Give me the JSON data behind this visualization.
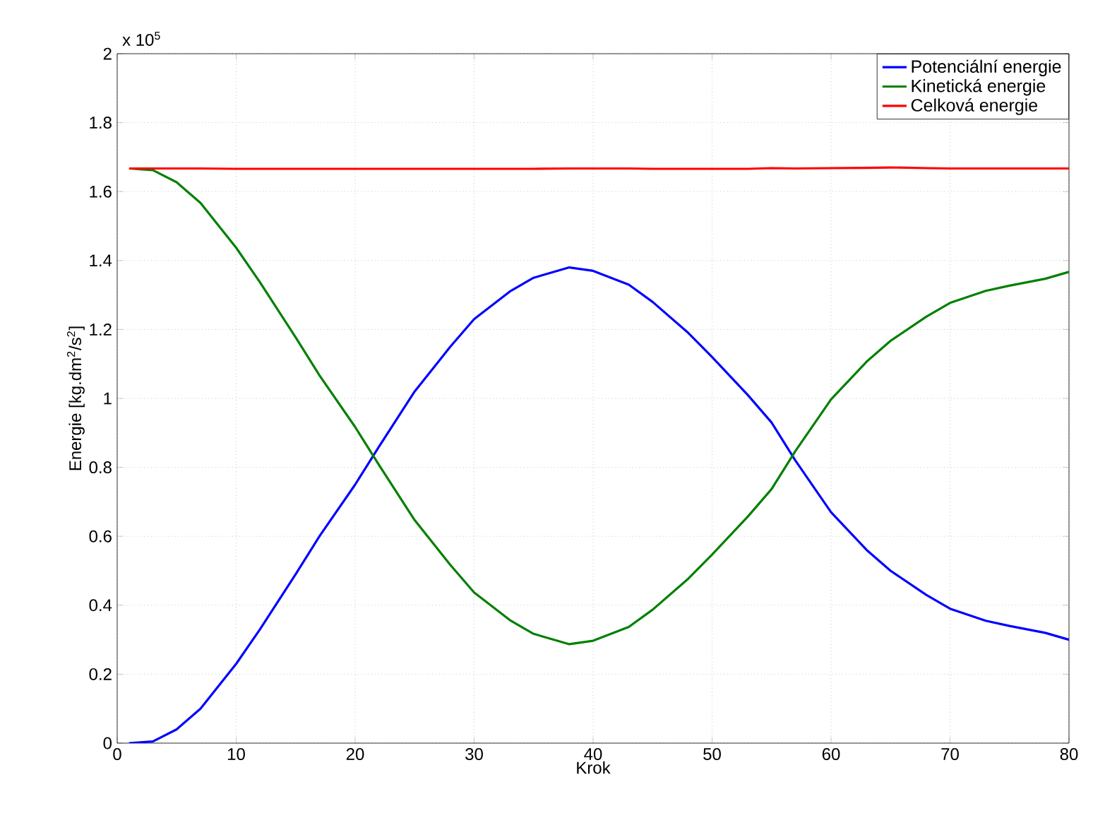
{
  "chart_data": {
    "type": "line",
    "xlabel": "Krok",
    "ylabel": "Energie [kg.dm$^{2}$/s$^{2}$]",
    "annotations": [
      "x 10$^{5}$"
    ],
    "xlim": [
      0,
      80
    ],
    "ylim": [
      0,
      2
    ],
    "xticks": [
      0,
      10,
      20,
      30,
      40,
      50,
      60,
      70,
      80
    ],
    "yticks": [
      0,
      0.2,
      0.4,
      0.6,
      0.8,
      1,
      1.2,
      1.4,
      1.6,
      1.8,
      2
    ],
    "grid": true,
    "legend": "top right",
    "line_style": "solid",
    "x": [
      1,
      3,
      5,
      7,
      10,
      12,
      15,
      17,
      20,
      22,
      25,
      28,
      30,
      33,
      35,
      38,
      40,
      43,
      45,
      48,
      50,
      53,
      55,
      57,
      60,
      63,
      65,
      68,
      70,
      73,
      75,
      78,
      80
    ],
    "series": [
      {
        "name": "Potenciální energie",
        "color": "#0000ff",
        "values": [
          0,
          0.005,
          0.04,
          0.1,
          0.23,
          0.33,
          0.49,
          0.6,
          0.75,
          0.86,
          1.02,
          1.15,
          1.23,
          1.31,
          1.35,
          1.38,
          1.37,
          1.33,
          1.28,
          1.19,
          1.12,
          1.01,
          0.93,
          0.82,
          0.67,
          0.56,
          0.5,
          0.43,
          0.39,
          0.355,
          0.34,
          0.32,
          0.3
        ]
      },
      {
        "name": "Kinetická energie",
        "color": "#008000",
        "values": [
          1.667,
          1.662,
          1.627,
          1.567,
          1.437,
          1.337,
          1.177,
          1.067,
          0.917,
          0.807,
          0.647,
          0.517,
          0.437,
          0.357,
          0.317,
          0.287,
          0.297,
          0.337,
          0.387,
          0.477,
          0.547,
          0.657,
          0.737,
          0.847,
          0.997,
          1.107,
          1.167,
          1.237,
          1.277,
          1.312,
          1.327,
          1.347,
          1.367
        ]
      },
      {
        "name": "Celková energie",
        "color": "#ff0000",
        "values": [
          1.667,
          1.667,
          1.667,
          1.667,
          1.666,
          1.666,
          1.666,
          1.666,
          1.666,
          1.666,
          1.666,
          1.666,
          1.666,
          1.666,
          1.666,
          1.667,
          1.667,
          1.667,
          1.666,
          1.666,
          1.666,
          1.666,
          1.668,
          1.667,
          1.668,
          1.669,
          1.67,
          1.668,
          1.667,
          1.667,
          1.667,
          1.667,
          1.667
        ]
      }
    ]
  }
}
